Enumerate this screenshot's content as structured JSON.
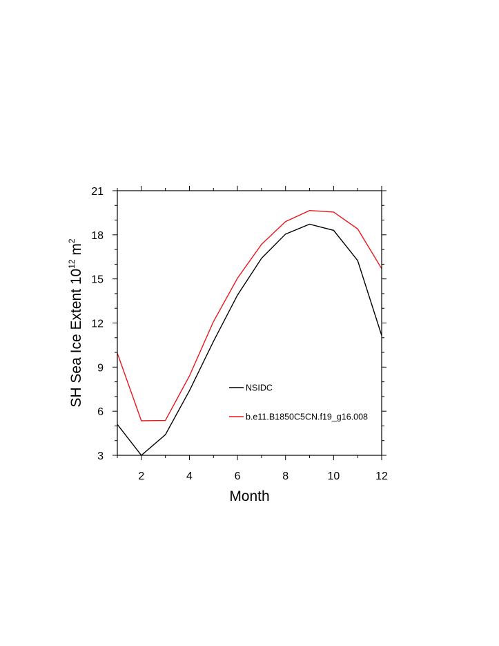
{
  "chart_data": {
    "type": "line",
    "xlabel": "Month",
    "ylabel": "SH Sea Ice Extent 10",
    "ylabel_exp1": "12",
    "ylabel_unit": " m",
    "ylabel_exp2": "2",
    "xlim": [
      1,
      12
    ],
    "ylim": [
      3,
      21
    ],
    "xticks": [
      2,
      4,
      6,
      8,
      10,
      12
    ],
    "yticks": [
      3,
      6,
      9,
      12,
      15,
      18,
      21
    ],
    "x": [
      1,
      2,
      3,
      4,
      5,
      6,
      7,
      8,
      9,
      10,
      11,
      12
    ],
    "series": [
      {
        "name": "NSIDC",
        "color": "#000000",
        "values": [
          5.1,
          3.0,
          4.4,
          7.4,
          10.75,
          13.9,
          16.4,
          18.05,
          18.72,
          18.3,
          16.25,
          11.15
        ]
      },
      {
        "name": "b.e11.B1850C5CN.f19_g16.008",
        "color": "#e8161c",
        "values": [
          9.95,
          5.35,
          5.37,
          8.4,
          12.1,
          15.05,
          17.35,
          18.9,
          19.65,
          19.55,
          18.4,
          15.7
        ]
      }
    ],
    "legend_position": "lower-center"
  }
}
